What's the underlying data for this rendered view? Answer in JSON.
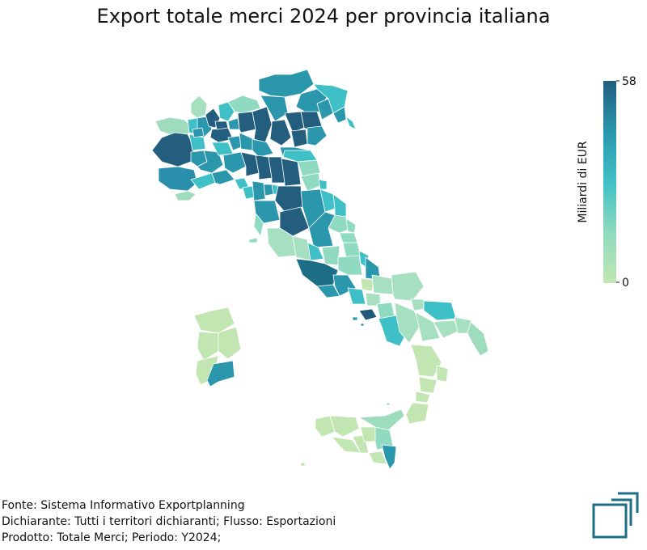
{
  "title": "Export totale merci 2024 per provincia italiana",
  "colorbar": {
    "label": "Miliardi di EUR",
    "min_label": "0",
    "max_label": "58",
    "min": 0,
    "max": 58,
    "colors": [
      "#c2e6b1",
      "#8fdac0",
      "#3fc0c6",
      "#2a97ad",
      "#235e7e"
    ]
  },
  "footer": {
    "source": "Fonte: Sistema Informativo Exportplanning",
    "declarant": "Dichiarante: Tutti i territori dichiaranti; Flusso: Esportazioni",
    "product": "Prodotto: Totale Merci; Periodo: Y2024;"
  },
  "logo": {
    "icon": "exportplanning-logo-icon",
    "color": "#1c6d86"
  },
  "map": {
    "type": "choropleth",
    "region": "Italia",
    "unit": "Miliardi di EUR",
    "level": "provincia"
  }
}
